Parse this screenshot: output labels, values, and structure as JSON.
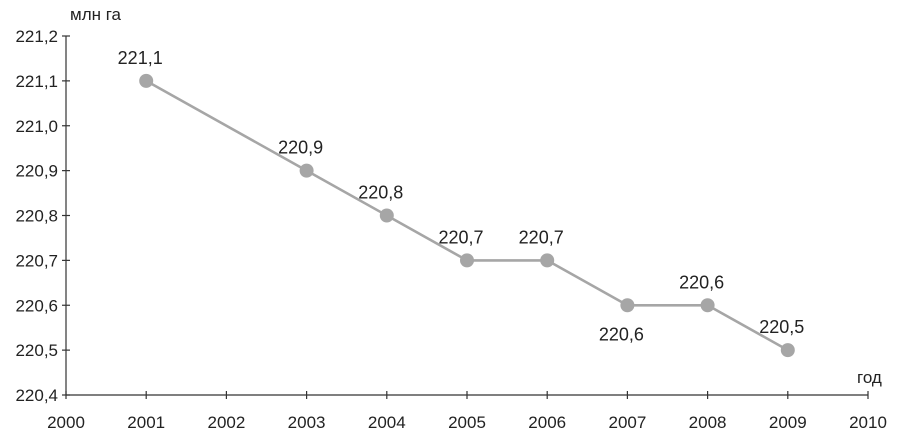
{
  "chart_data": {
    "type": "line",
    "title": "",
    "ylabel": "млн га",
    "xlabel": "год",
    "x_ticks": [
      "2000",
      "2001",
      "2002",
      "2003",
      "2004",
      "2005",
      "2006",
      "2007",
      "2008",
      "2009",
      "2010"
    ],
    "y_ticks": [
      "220,4",
      "220,5",
      "220,6",
      "220,7",
      "220,8",
      "220,9",
      "221,0",
      "221,1",
      "221,2"
    ],
    "ylim": [
      220.4,
      221.2
    ],
    "grid": false,
    "series": [
      {
        "categories": [
          "2001",
          "2003",
          "2004",
          "2005",
          "2006",
          "2007",
          "2008",
          "2009"
        ],
        "values": [
          221.1,
          220.9,
          220.8,
          220.7,
          220.7,
          220.6,
          220.6,
          220.5
        ],
        "labels": [
          "221,1",
          "220,9",
          "220,8",
          "220,7",
          "220,7",
          "220,6",
          "220,6",
          "220,5"
        ],
        "label_position": [
          "above",
          "above",
          "above",
          "above",
          "above",
          "below",
          "above",
          "above"
        ]
      }
    ],
    "colors": {
      "line": "#a6a6a6",
      "marker": "#a6a6a6",
      "axis": "#333333",
      "text": "#222222"
    }
  }
}
